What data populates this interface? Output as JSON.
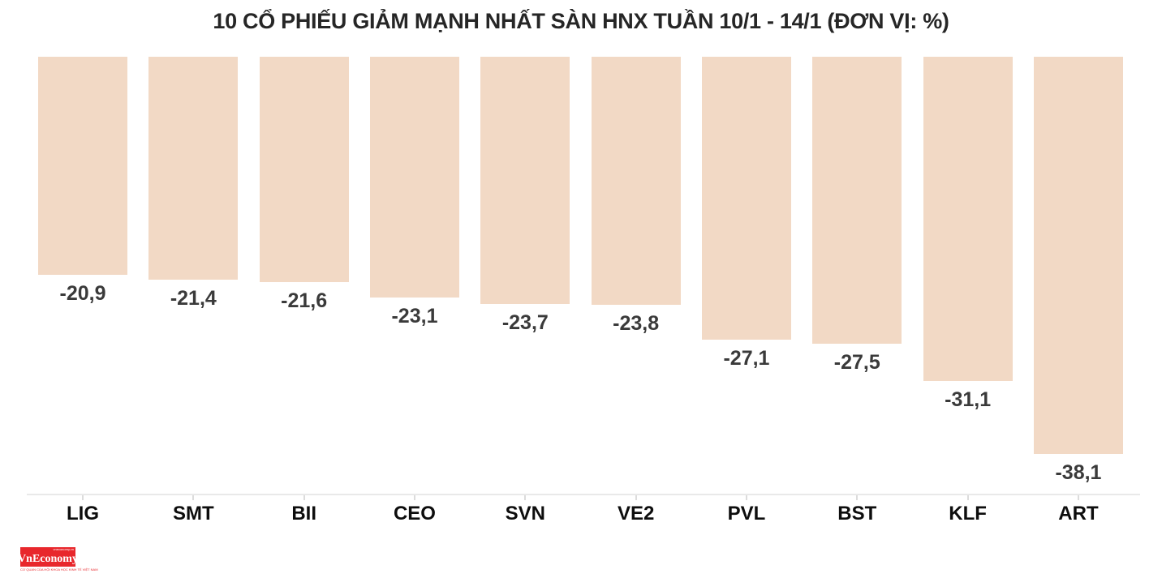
{
  "chart_data": {
    "type": "bar",
    "title": "10 CỔ PHIẾU GIẢM MẠNH NHẤT SÀN HNX TUẦN 10/1 - 14/1 (ĐƠN VỊ: %)",
    "categories": [
      "LIG",
      "SMT",
      "BII",
      "CEO",
      "SVN",
      "VE2",
      "PVL",
      "BST",
      "KLF",
      "ART"
    ],
    "values": [
      -20.9,
      -21.4,
      -21.6,
      -23.1,
      -23.7,
      -23.8,
      -27.1,
      -27.5,
      -31.1,
      -38.1
    ],
    "data_labels": [
      "-20,9",
      "-21,4",
      "-21,6",
      "-23,1",
      "-23,7",
      "-23,8",
      "-27,1",
      "-27,5",
      "-31,1",
      "-38,1"
    ],
    "unit": "%",
    "orientation": "vertical, negative bars hanging from zero baseline at top",
    "ylim": [
      -42,
      0
    ],
    "grid": false,
    "legend": false,
    "xlabel": "",
    "ylabel": "",
    "colors": {
      "bar": "#f2d9c5",
      "value_label": "#3a3a3a",
      "category_label": "#0d0d0d",
      "title": "#262626",
      "axis_line": "#e9e9e9",
      "background": "#ffffff"
    }
  },
  "logo": {
    "text": "VnEconomy",
    "top_text": "vneconomy.vn",
    "tagline": "CƠ QUAN CỦA HỘI KHOA HỌC KINH TẾ VIỆT NAM",
    "bg_color": "#e8272c",
    "text_color": "#ffffff"
  }
}
